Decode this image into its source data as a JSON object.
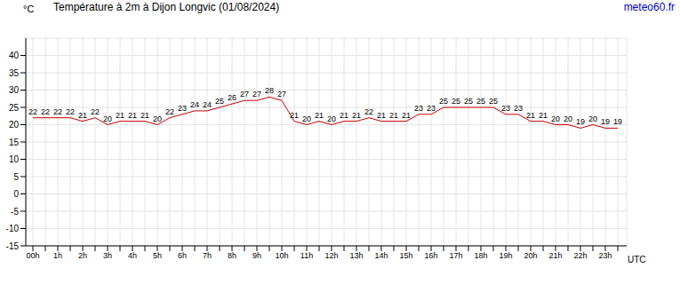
{
  "chart_data": {
    "type": "line",
    "title": "Température à 2m à Dijon Longvic (01/08/2024)",
    "y_label": "°C",
    "x_label": "UTC",
    "annotations": [
      "meteo60.fr"
    ],
    "categories": [
      "00h",
      null,
      "1h",
      null,
      "2h",
      null,
      "3h",
      null,
      "4h",
      null,
      "5h",
      null,
      "6h",
      null,
      "7h",
      null,
      "8h",
      null,
      "9h",
      null,
      "10h",
      null,
      "11h",
      null,
      "12h",
      null,
      "13h",
      null,
      "14h",
      null,
      "15h",
      null,
      "16h",
      null,
      "17h",
      null,
      "18h",
      null,
      "19h",
      null,
      "20h",
      null,
      "21h",
      null,
      "22h",
      null,
      "23h",
      null
    ],
    "values": [
      22,
      22,
      22,
      22,
      21,
      22,
      20,
      21,
      21,
      21,
      20,
      22,
      23,
      24,
      24,
      25,
      26,
      27,
      27,
      28,
      27,
      21,
      20,
      21,
      20,
      21,
      21,
      22,
      21,
      21,
      21,
      23,
      23,
      25,
      25,
      25,
      25,
      25,
      23,
      23,
      21,
      21,
      20,
      20,
      19,
      20,
      19,
      19
    ],
    "color": "#cc0000",
    "ylim": [
      -15,
      45
    ],
    "yticks": [
      -15,
      -10,
      -5,
      0,
      5,
      10,
      15,
      20,
      25,
      30,
      35,
      40
    ],
    "grid": true,
    "data_labels": true
  }
}
